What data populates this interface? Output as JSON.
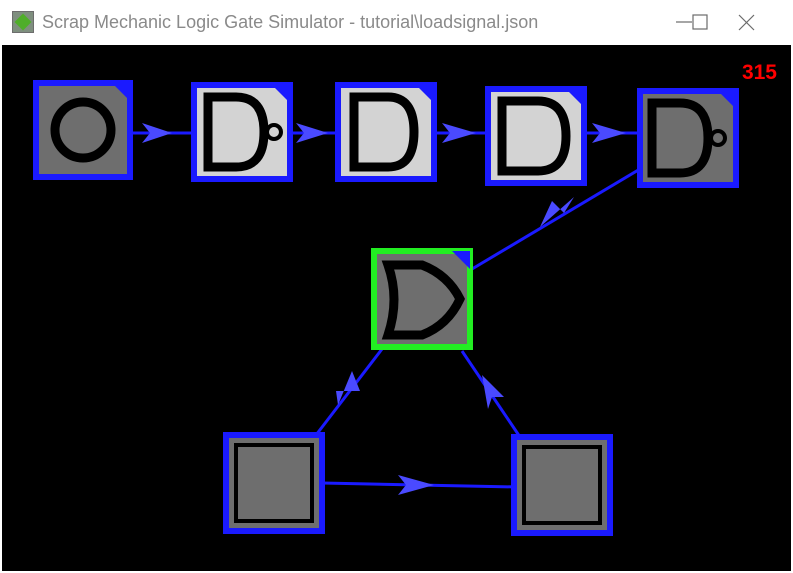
{
  "window": {
    "title": "Scrap Mechanic Logic Gate Simulator - tutorial\\loadsignal.json",
    "app_icon": "scrap-mechanic-icon",
    "minimize_icon": "minimize-icon",
    "maximize_icon": "maximize-icon",
    "close_icon": "close-icon"
  },
  "simulation": {
    "tick_counter": "315",
    "counter_color": "#ff0000",
    "background": "#000000"
  },
  "colors": {
    "border_normal": "#1a1aff",
    "border_selected": "#22ee22",
    "wire": "#1a1aff",
    "arrow": "#4a4aff",
    "gate_on": "#d3d3d3",
    "gate_off": "#6e6e6e"
  },
  "gates": [
    {
      "id": "gate-input",
      "type": "toggle-switch",
      "powered": false,
      "selected": false
    },
    {
      "id": "gate-nor-1",
      "type": "nand",
      "powered": true,
      "selected": false
    },
    {
      "id": "gate-and-1",
      "type": "and",
      "powered": true,
      "selected": false
    },
    {
      "id": "gate-and-2",
      "type": "and",
      "powered": true,
      "selected": false
    },
    {
      "id": "gate-nand-2",
      "type": "nand",
      "powered": false,
      "selected": false
    },
    {
      "id": "gate-or",
      "type": "or",
      "powered": false,
      "selected": true
    },
    {
      "id": "gate-timer-left",
      "type": "timer",
      "powered": false,
      "selected": false
    },
    {
      "id": "gate-timer-right",
      "type": "timer",
      "powered": false,
      "selected": false
    }
  ]
}
